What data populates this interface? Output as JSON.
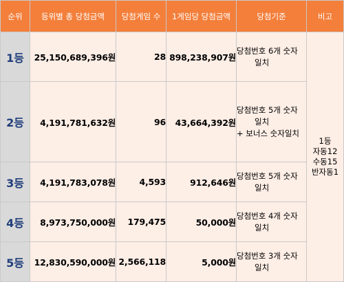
{
  "headers": [
    "순위",
    "등위별 총 당첨금액",
    "당첨게임 수",
    "1게임당 당첨금액",
    "당첨기준",
    "비고"
  ],
  "rows": [
    {
      "rank": "1등",
      "total": "25,150,689,396원",
      "games": "28",
      "per_game": "898,238,907원",
      "criteria": [
        "당첨번호 6개 숫자",
        "일치"
      ]
    },
    {
      "rank": "2등",
      "total": "4,191,781,632원",
      "games": "96",
      "per_game": "43,664,392원",
      "criteria": [
        "당첨번호 5개 숫자",
        "일치",
        "+ 보너스 숫자일치"
      ]
    },
    {
      "rank": "3등",
      "total": "4,191,783,078원",
      "games": "4,593",
      "per_game": "912,646원",
      "criteria": [
        "당첨번호 5개 숫자",
        "일치"
      ]
    },
    {
      "rank": "4등",
      "total": "8,973,750,000원",
      "games": "179,475",
      "per_game": "50,000원",
      "criteria": [
        "당첨번호 4개 숫자",
        "일치"
      ]
    },
    {
      "rank": "5등",
      "total": "12,830,590,000원",
      "games": "2,566,118",
      "per_game": "5,000원",
      "criteria": [
        "당첨번호 3개 숫자",
        "일치"
      ]
    }
  ],
  "note": [
    "1등",
    "자동12",
    "수동15",
    "반자동1"
  ]
}
